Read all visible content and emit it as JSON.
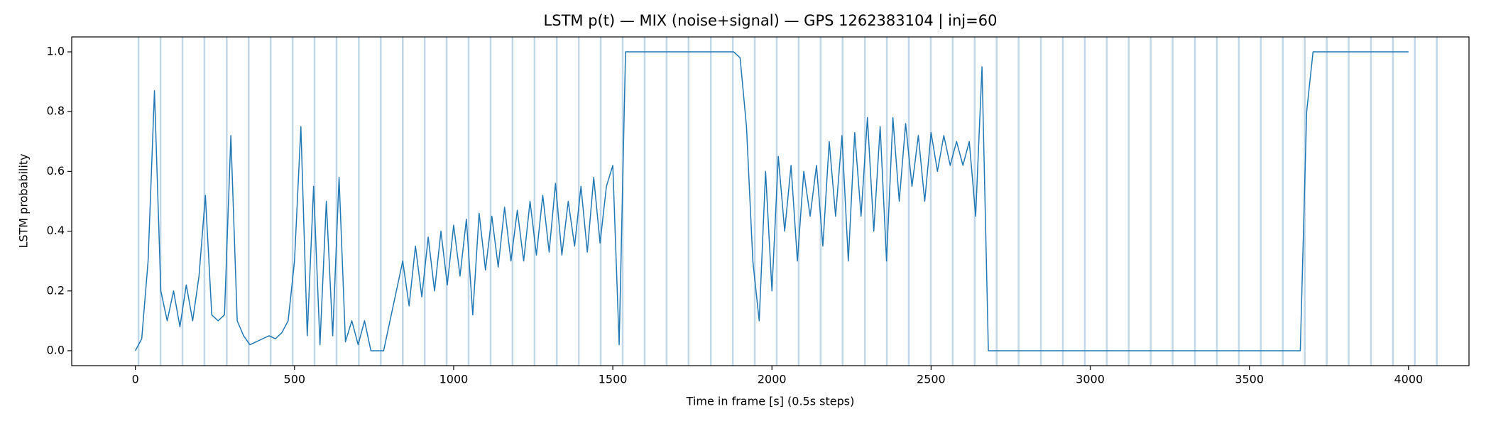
{
  "chart_data": {
    "type": "line",
    "title": "LSTM p(t) — MIX (noise+signal) — GPS 1262383104 | inj=60",
    "xlabel": "Time in frame [s] (0.5s steps)",
    "ylabel": "LSTM probability",
    "color": "#1f77b4",
    "vline_color": "#a6c8e0",
    "x": [
      0,
      20,
      40,
      60,
      80,
      100,
      120,
      140,
      160,
      180,
      200,
      220,
      240,
      260,
      280,
      300,
      320,
      340,
      360,
      380,
      400,
      420,
      440,
      460,
      480,
      500,
      520,
      540,
      560,
      580,
      600,
      620,
      640,
      660,
      680,
      700,
      720,
      740,
      760,
      780,
      800,
      820,
      840,
      860,
      880,
      900,
      920,
      940,
      960,
      980,
      1000,
      1020,
      1040,
      1060,
      1080,
      1100,
      1120,
      1140,
      1160,
      1180,
      1200,
      1220,
      1240,
      1260,
      1280,
      1300,
      1320,
      1340,
      1360,
      1380,
      1400,
      1420,
      1440,
      1460,
      1480,
      1500,
      1520,
      1540,
      1560,
      1580,
      1600,
      1620,
      1640,
      1660,
      1680,
      1700,
      1720,
      1740,
      1760,
      1780,
      1800,
      1820,
      1840,
      1860,
      1880,
      1900,
      1920,
      1940,
      1960,
      1980,
      2000,
      2020,
      2040,
      2060,
      2080,
      2100,
      2120,
      2140,
      2160,
      2180,
      2200,
      2220,
      2240,
      2260,
      2280,
      2300,
      2320,
      2340,
      2360,
      2380,
      2400,
      2420,
      2440,
      2460,
      2480,
      2500,
      2520,
      2540,
      2560,
      2580,
      2600,
      2620,
      2640,
      2660,
      2680,
      2700,
      2720,
      2740,
      2760,
      2780,
      2800,
      2820,
      2840,
      2860,
      2880,
      2900,
      2920,
      2940,
      2960,
      2980,
      3000,
      3020,
      3040,
      3060,
      3080,
      3100,
      3120,
      3140,
      3160,
      3180,
      3200,
      3220,
      3240,
      3260,
      3280,
      3300,
      3320,
      3340,
      3360,
      3380,
      3400,
      3420,
      3440,
      3460,
      3480,
      3500,
      3520,
      3540,
      3560,
      3580,
      3600,
      3620,
      3640,
      3660,
      3680,
      3700,
      3720,
      3740,
      3760,
      3780,
      3800,
      3820,
      3840,
      3860,
      3880,
      3900,
      3920,
      3940,
      3960,
      3980,
      4000
    ],
    "values": [
      0,
      0.04,
      0.3,
      0.87,
      0.2,
      0.1,
      0.2,
      0.08,
      0.22,
      0.1,
      0.25,
      0.52,
      0.12,
      0.1,
      0.12,
      0.72,
      0.1,
      0.05,
      0.02,
      0.03,
      0.04,
      0.05,
      0.04,
      0.06,
      0.1,
      0.3,
      0.75,
      0.05,
      0.55,
      0.02,
      0.5,
      0.05,
      0.58,
      0.03,
      0.1,
      0.02,
      0.1,
      0,
      0,
      0,
      0.1,
      0.2,
      0.3,
      0.15,
      0.35,
      0.18,
      0.38,
      0.2,
      0.4,
      0.22,
      0.42,
      0.25,
      0.44,
      0.12,
      0.46,
      0.27,
      0.45,
      0.28,
      0.48,
      0.3,
      0.47,
      0.3,
      0.5,
      0.32,
      0.52,
      0.33,
      0.56,
      0.32,
      0.5,
      0.35,
      0.55,
      0.33,
      0.58,
      0.36,
      0.55,
      0.62,
      0.02,
      1,
      1,
      1,
      1,
      1,
      1,
      1,
      1,
      1,
      1,
      1,
      1,
      1,
      1,
      1,
      1,
      1,
      1,
      0.98,
      0.75,
      0.3,
      0.1,
      0.6,
      0.2,
      0.65,
      0.4,
      0.62,
      0.3,
      0.6,
      0.45,
      0.62,
      0.35,
      0.7,
      0.45,
      0.72,
      0.3,
      0.73,
      0.45,
      0.78,
      0.4,
      0.75,
      0.3,
      0.78,
      0.5,
      0.76,
      0.55,
      0.72,
      0.5,
      0.73,
      0.6,
      0.72,
      0.62,
      0.7,
      0.62,
      0.7,
      0.45,
      0.95,
      0,
      0,
      0,
      0,
      0,
      0,
      0,
      0,
      0,
      0,
      0,
      0,
      0,
      0,
      0,
      0,
      0,
      0,
      0,
      0,
      0,
      0,
      0,
      0,
      0,
      0,
      0,
      0,
      0,
      0,
      0,
      0,
      0,
      0,
      0,
      0,
      0,
      0,
      0,
      0,
      0,
      0,
      0,
      0,
      0,
      0,
      0,
      0,
      0,
      0,
      0.8,
      1,
      1,
      1,
      1,
      1,
      1,
      1,
      1,
      1,
      1,
      1,
      1,
      1,
      1,
      1,
      1
    ],
    "vlines": [
      10,
      79,
      148,
      217,
      287,
      356,
      425,
      494,
      563,
      632,
      702,
      771,
      840,
      909,
      978,
      1047,
      1116,
      1185,
      1254,
      1324,
      1393,
      1462,
      1531,
      1600,
      1669,
      1738,
      1808,
      1877,
      1946,
      2015,
      2084,
      2153,
      2222,
      2292,
      2361,
      2430,
      2499,
      2568,
      2637,
      2706,
      2775,
      2845,
      2914,
      2983,
      3052,
      3121,
      3190,
      3259,
      3329,
      3398,
      3467,
      3536,
      3605,
      3674,
      3743,
      3812,
      3882,
      3951,
      4020,
      4089
    ],
    "xlim": [
      -200,
      4190
    ],
    "ylim": [
      -0.05,
      1.05
    ],
    "xticks": [
      0,
      500,
      1000,
      1500,
      2000,
      2500,
      3000,
      3500,
      4000
    ],
    "yticks": [
      {
        "value": 0,
        "label": "0.0"
      },
      0.2,
      0.4,
      0.6,
      0.8,
      {
        "value": 1,
        "label": "1.0"
      }
    ]
  }
}
